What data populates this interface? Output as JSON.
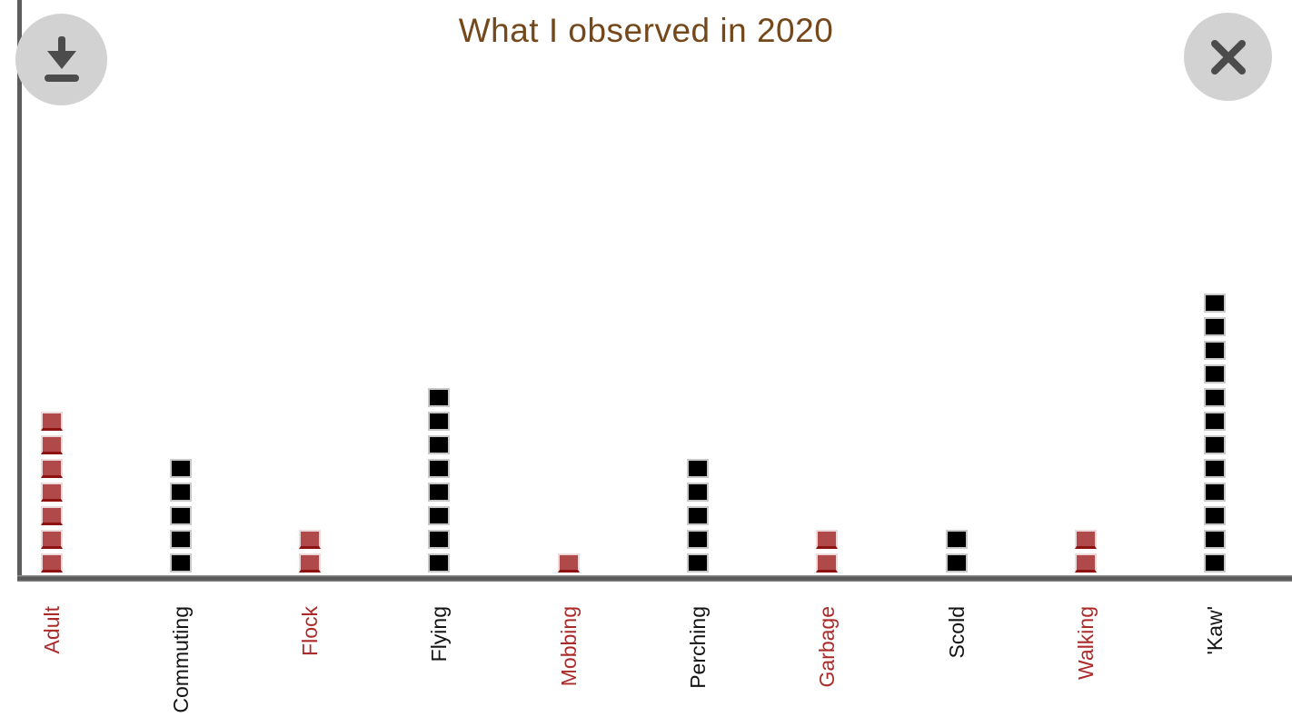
{
  "header": {
    "title": "What I observed in 2020"
  },
  "toolbar": {
    "download_button": "download",
    "close_button": "close"
  },
  "chart_data": {
    "type": "bar",
    "style": "waffle-stack",
    "title": "What I observed in 2020",
    "categories": [
      "Adult",
      "Commuting",
      "Flock",
      "Flying",
      "Mobbing",
      "Perching",
      "Garbage",
      "Scold",
      "Walking",
      "'Kaw'"
    ],
    "values": [
      7,
      5,
      2,
      8,
      1,
      5,
      2,
      2,
      2,
      12
    ],
    "bar_colors": [
      "dark_red",
      "black",
      "dark_red",
      "black",
      "dark_red",
      "black",
      "dark_red",
      "black",
      "dark_red",
      "black"
    ],
    "label_colors": [
      "dark_red",
      "black",
      "dark_red",
      "black",
      "dark_red",
      "black",
      "dark_red",
      "black",
      "dark_red",
      "black"
    ],
    "square_unit": 1,
    "xlabel": "",
    "ylabel": "",
    "ylim": [
      0,
      12
    ],
    "grid": false,
    "legend": "none"
  },
  "colors": {
    "title": "#75481c",
    "axis": "#5c5c5c",
    "button_bg": "#d2d2d2",
    "button_icon": "#4c4c4c",
    "dark_red": {
      "fill": "#b04a4a",
      "edge": "#eedada",
      "bottom": "#8e1212",
      "label": "#ab2b2b"
    },
    "black": {
      "fill": "#000000",
      "edge": "#c9c9c9",
      "bottom": "",
      "label": "#141414"
    }
  }
}
